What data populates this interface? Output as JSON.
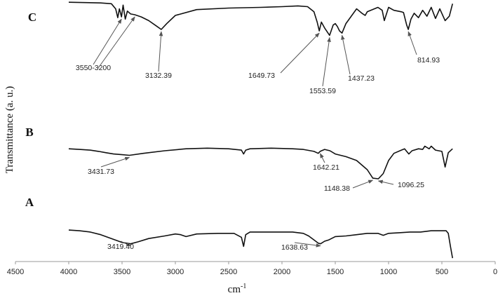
{
  "chart_data": {
    "type": "line",
    "title": "",
    "xlabel": "cm",
    "xlabel_superscript": "-1",
    "ylabel": "Transmittance (a. u.)",
    "xlim": [
      4500,
      0
    ],
    "x_reversed": true,
    "x_ticks": [
      4500,
      4000,
      3500,
      3000,
      2500,
      2000,
      1500,
      1000,
      500,
      0
    ],
    "ylim": [
      0,
      100
    ],
    "grid": false,
    "colors": {
      "trace": "#111111",
      "arrow": "#555555"
    },
    "series": [
      {
        "name": "C",
        "x": [
          4000,
          3700,
          3600,
          3560,
          3540,
          3525,
          3505,
          3490,
          3470,
          3450,
          3420,
          3380,
          3320,
          3250,
          3180,
          3132,
          3080,
          3000,
          2800,
          2500,
          2200,
          2000,
          1850,
          1760,
          1700,
          1670,
          1650,
          1630,
          1600,
          1553,
          1520,
          1500,
          1480,
          1460,
          1437,
          1400,
          1300,
          1250,
          1220,
          1200,
          1100,
          1060,
          1040,
          1000,
          950,
          880,
          860,
          830,
          815,
          790,
          760,
          720,
          680,
          640,
          600,
          560,
          520,
          470,
          430,
          400
        ],
        "y": [
          97,
          96,
          95,
          88,
          76,
          88,
          77,
          93,
          74,
          85,
          81,
          80,
          77,
          72,
          65,
          60,
          68,
          79,
          87,
          89,
          90,
          91,
          92,
          91,
          84,
          70,
          58,
          70,
          62,
          52,
          66,
          68,
          64,
          58,
          55,
          68,
          88,
          82,
          79,
          84,
          90,
          86,
          72,
          90,
          86,
          84,
          83,
          66,
          60,
          74,
          82,
          76,
          86,
          78,
          90,
          75,
          88,
          72,
          78,
          95
        ]
      },
      {
        "name": "B",
        "x": [
          4000,
          3900,
          3800,
          3720,
          3650,
          3580,
          3500,
          3431,
          3300,
          3100,
          2900,
          2700,
          2500,
          2380,
          2360,
          2340,
          2300,
          2100,
          1900,
          1800,
          1700,
          1660,
          1642,
          1600,
          1550,
          1500,
          1400,
          1300,
          1200,
          1148,
          1096,
          1050,
          1000,
          950,
          880,
          850,
          810,
          780,
          720,
          680,
          660,
          620,
          600,
          560,
          500,
          470,
          440,
          400
        ],
        "y": [
          60,
          59,
          58,
          56,
          54,
          52,
          51,
          50,
          53,
          57,
          60,
          61,
          60,
          58,
          52,
          58,
          60,
          61,
          60,
          59,
          56,
          53,
          56,
          59,
          57,
          52,
          48,
          42,
          28,
          15,
          14,
          22,
          42,
          53,
          58,
          60,
          52,
          57,
          60,
          59,
          64,
          60,
          64,
          58,
          56,
          32,
          54,
          60
        ]
      },
      {
        "name": "A",
        "x": [
          4000,
          3900,
          3800,
          3700,
          3600,
          3500,
          3419,
          3350,
          3250,
          3100,
          3000,
          2950,
          2900,
          2800,
          2600,
          2450,
          2380,
          2360,
          2340,
          2300,
          2100,
          1900,
          1800,
          1750,
          1700,
          1660,
          1638,
          1600,
          1560,
          1500,
          1400,
          1300,
          1200,
          1100,
          1050,
          1000,
          900,
          800,
          700,
          600,
          500,
          460,
          440,
          420,
          400
        ],
        "y": [
          45,
          44,
          42,
          38,
          32,
          26,
          24,
          27,
          32,
          36,
          39,
          38,
          35,
          39,
          40,
          40,
          34,
          20,
          38,
          42,
          42,
          42,
          40,
          36,
          30,
          25,
          24,
          28,
          30,
          35,
          36,
          38,
          40,
          40,
          37,
          40,
          41,
          42,
          42,
          44,
          44,
          44,
          40,
          20,
          2
        ]
      }
    ],
    "trace_labels": [
      "C",
      "B",
      "A"
    ],
    "annotations": [
      {
        "label": "3550-3200",
        "series": "C",
        "x": 3505
      },
      {
        "label": "",
        "series": "C",
        "x": 3380
      },
      {
        "label": "3132.39",
        "series": "C",
        "x": 3132
      },
      {
        "label": "1649.73",
        "series": "C",
        "x": 1650
      },
      {
        "label": "1553.59",
        "series": "C",
        "x": 1553
      },
      {
        "label": "1437.23",
        "series": "C",
        "x": 1437
      },
      {
        "label": "814.93",
        "series": "C",
        "x": 815
      },
      {
        "label": "3431.73",
        "series": "B",
        "x": 3431
      },
      {
        "label": "1642.21",
        "series": "B",
        "x": 1642
      },
      {
        "label": "1148.38",
        "series": "B",
        "x": 1148
      },
      {
        "label": "1096.25",
        "series": "B",
        "x": 1096
      },
      {
        "label": "3419.40",
        "series": "A",
        "x": 3419
      },
      {
        "label": "1638.63",
        "series": "A",
        "x": 1638
      }
    ]
  }
}
